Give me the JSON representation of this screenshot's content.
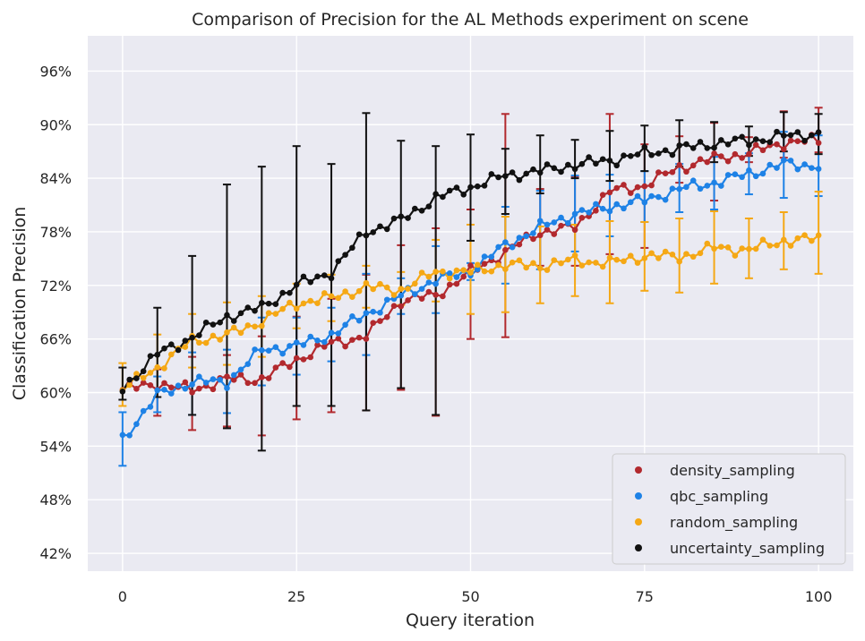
{
  "chart_data": {
    "type": "line",
    "title": "Comparison of Precision for the AL Methods experiment on scene",
    "xlabel": "Query iteration",
    "ylabel": "Classification Precision",
    "xlim": [
      -5,
      105
    ],
    "ylim": [
      0.4,
      0.9995
    ],
    "xticks": [
      0,
      25,
      50,
      75,
      100
    ],
    "xtick_labels": [
      "0",
      "25",
      "50",
      "75",
      "100"
    ],
    "yticks": [
      0.42,
      0.48,
      0.54,
      0.6,
      0.66,
      0.72,
      0.78,
      0.84,
      0.9,
      0.96
    ],
    "ytick_labels": [
      "42%",
      "48%",
      "54%",
      "60%",
      "66%",
      "72%",
      "78%",
      "84%",
      "90%",
      "96%"
    ],
    "grid": true,
    "legend_position": "lower-right",
    "x_range": [
      0,
      100
    ],
    "series": [
      {
        "name": "density_sampling",
        "color": "#b2292e",
        "anchors": [
          [
            0,
            0.603
          ],
          [
            5,
            0.61
          ],
          [
            10,
            0.603
          ],
          [
            15,
            0.615
          ],
          [
            20,
            0.615
          ],
          [
            25,
            0.637
          ],
          [
            30,
            0.655
          ],
          [
            35,
            0.663
          ],
          [
            40,
            0.703
          ],
          [
            45,
            0.709
          ],
          [
            50,
            0.735
          ],
          [
            55,
            0.757
          ],
          [
            60,
            0.78
          ],
          [
            65,
            0.785
          ],
          [
            70,
            0.825
          ],
          [
            75,
            0.832
          ],
          [
            80,
            0.852
          ],
          [
            85,
            0.862
          ],
          [
            90,
            0.868
          ],
          [
            95,
            0.88
          ],
          [
            100,
            0.882
          ]
        ],
        "error_bars": [
          [
            5,
            0.574,
            0.626
          ],
          [
            10,
            0.558,
            0.64
          ],
          [
            15,
            0.562,
            0.642
          ],
          [
            20,
            0.552,
            0.663
          ],
          [
            25,
            0.57,
            0.685
          ],
          [
            30,
            0.578,
            0.705
          ],
          [
            35,
            0.58,
            0.732
          ],
          [
            40,
            0.603,
            0.765
          ],
          [
            45,
            0.574,
            0.784
          ],
          [
            50,
            0.66,
            0.805
          ],
          [
            55,
            0.662,
            0.912
          ],
          [
            60,
            0.742,
            0.828
          ],
          [
            65,
            0.742,
            0.842
          ],
          [
            70,
            0.755,
            0.912
          ],
          [
            75,
            0.762,
            0.878
          ],
          [
            80,
            0.835,
            0.887
          ],
          [
            85,
            0.815,
            0.902
          ],
          [
            90,
            0.858,
            0.886
          ],
          [
            95,
            0.863,
            0.915
          ],
          [
            100,
            0.869,
            0.919
          ]
        ]
      },
      {
        "name": "qbc_sampling",
        "color": "#1e82e6",
        "anchors": [
          [
            0,
            0.548
          ],
          [
            5,
            0.597
          ],
          [
            10,
            0.612
          ],
          [
            15,
            0.612
          ],
          [
            20,
            0.648
          ],
          [
            25,
            0.652
          ],
          [
            30,
            0.665
          ],
          [
            35,
            0.688
          ],
          [
            40,
            0.708
          ],
          [
            45,
            0.726
          ],
          [
            50,
            0.736
          ],
          [
            55,
            0.765
          ],
          [
            60,
            0.785
          ],
          [
            65,
            0.8
          ],
          [
            70,
            0.808
          ],
          [
            75,
            0.815
          ],
          [
            80,
            0.828
          ],
          [
            85,
            0.835
          ],
          [
            90,
            0.845
          ],
          [
            95,
            0.856
          ],
          [
            100,
            0.854
          ]
        ],
        "error_bars": [
          [
            0,
            0.518,
            0.578
          ],
          [
            5,
            0.578,
            0.618
          ],
          [
            10,
            0.575,
            0.645
          ],
          [
            15,
            0.577,
            0.648
          ],
          [
            20,
            0.608,
            0.684
          ],
          [
            25,
            0.62,
            0.684
          ],
          [
            30,
            0.635,
            0.695
          ],
          [
            35,
            0.642,
            0.733
          ],
          [
            40,
            0.688,
            0.728
          ],
          [
            45,
            0.689,
            0.764
          ],
          [
            50,
            0.726,
            0.745
          ],
          [
            55,
            0.722,
            0.808
          ],
          [
            60,
            0.738,
            0.826
          ],
          [
            65,
            0.758,
            0.843
          ],
          [
            70,
            0.775,
            0.844
          ],
          [
            75,
            0.791,
            0.848
          ],
          [
            80,
            0.802,
            0.856
          ],
          [
            85,
            0.805,
            0.864
          ],
          [
            90,
            0.822,
            0.868
          ],
          [
            95,
            0.818,
            0.892
          ],
          [
            100,
            0.82,
            0.888
          ]
        ]
      },
      {
        "name": "random_sampling",
        "color": "#f5a815",
        "anchors": [
          [
            0,
            0.604
          ],
          [
            5,
            0.628
          ],
          [
            10,
            0.658
          ],
          [
            15,
            0.664
          ],
          [
            20,
            0.68
          ],
          [
            25,
            0.7
          ],
          [
            30,
            0.706
          ],
          [
            35,
            0.718
          ],
          [
            40,
            0.715
          ],
          [
            45,
            0.735
          ],
          [
            50,
            0.735
          ],
          [
            55,
            0.743
          ],
          [
            60,
            0.742
          ],
          [
            65,
            0.748
          ],
          [
            70,
            0.745
          ],
          [
            75,
            0.753
          ],
          [
            80,
            0.752
          ],
          [
            85,
            0.762
          ],
          [
            90,
            0.76
          ],
          [
            95,
            0.77
          ],
          [
            100,
            0.772
          ]
        ],
        "error_bars": [
          [
            0,
            0.585,
            0.633
          ],
          [
            5,
            0.595,
            0.665
          ],
          [
            10,
            0.628,
            0.688
          ],
          [
            15,
            0.631,
            0.701
          ],
          [
            20,
            0.64,
            0.708
          ],
          [
            25,
            0.672,
            0.722
          ],
          [
            30,
            0.68,
            0.732
          ],
          [
            35,
            0.695,
            0.742
          ],
          [
            40,
            0.698,
            0.735
          ],
          [
            45,
            0.702,
            0.771
          ],
          [
            50,
            0.688,
            0.788
          ],
          [
            55,
            0.69,
            0.797
          ],
          [
            60,
            0.7,
            0.786
          ],
          [
            65,
            0.708,
            0.788
          ],
          [
            70,
            0.7,
            0.792
          ],
          [
            75,
            0.714,
            0.791
          ],
          [
            80,
            0.712,
            0.795
          ],
          [
            85,
            0.722,
            0.803
          ],
          [
            90,
            0.728,
            0.795
          ],
          [
            95,
            0.738,
            0.802
          ],
          [
            100,
            0.733,
            0.825
          ]
        ]
      },
      {
        "name": "uncertainty_sampling",
        "color": "#111111",
        "anchors": [
          [
            0,
            0.605
          ],
          [
            5,
            0.643
          ],
          [
            10,
            0.662
          ],
          [
            15,
            0.685
          ],
          [
            20,
            0.695
          ],
          [
            25,
            0.72
          ],
          [
            30,
            0.735
          ],
          [
            35,
            0.78
          ],
          [
            40,
            0.793
          ],
          [
            45,
            0.818
          ],
          [
            50,
            0.83
          ],
          [
            55,
            0.843
          ],
          [
            60,
            0.848
          ],
          [
            65,
            0.855
          ],
          [
            70,
            0.86
          ],
          [
            75,
            0.868
          ],
          [
            80,
            0.873
          ],
          [
            85,
            0.879
          ],
          [
            90,
            0.882
          ],
          [
            95,
            0.887
          ],
          [
            100,
            0.89
          ]
        ],
        "error_bars": [
          [
            0,
            0.592,
            0.628
          ],
          [
            5,
            0.595,
            0.695
          ],
          [
            10,
            0.575,
            0.753
          ],
          [
            15,
            0.56,
            0.833
          ],
          [
            20,
            0.535,
            0.853
          ],
          [
            25,
            0.585,
            0.876
          ],
          [
            30,
            0.585,
            0.856
          ],
          [
            35,
            0.58,
            0.913
          ],
          [
            40,
            0.605,
            0.882
          ],
          [
            45,
            0.575,
            0.876
          ],
          [
            50,
            0.77,
            0.889
          ],
          [
            55,
            0.8,
            0.873
          ],
          [
            60,
            0.823,
            0.888
          ],
          [
            65,
            0.84,
            0.883
          ],
          [
            70,
            0.837,
            0.893
          ],
          [
            75,
            0.848,
            0.899
          ],
          [
            80,
            0.853,
            0.905
          ],
          [
            85,
            0.858,
            0.903
          ],
          [
            90,
            0.865,
            0.898
          ],
          [
            95,
            0.87,
            0.914
          ],
          [
            100,
            0.867,
            0.912
          ]
        ]
      }
    ]
  }
}
